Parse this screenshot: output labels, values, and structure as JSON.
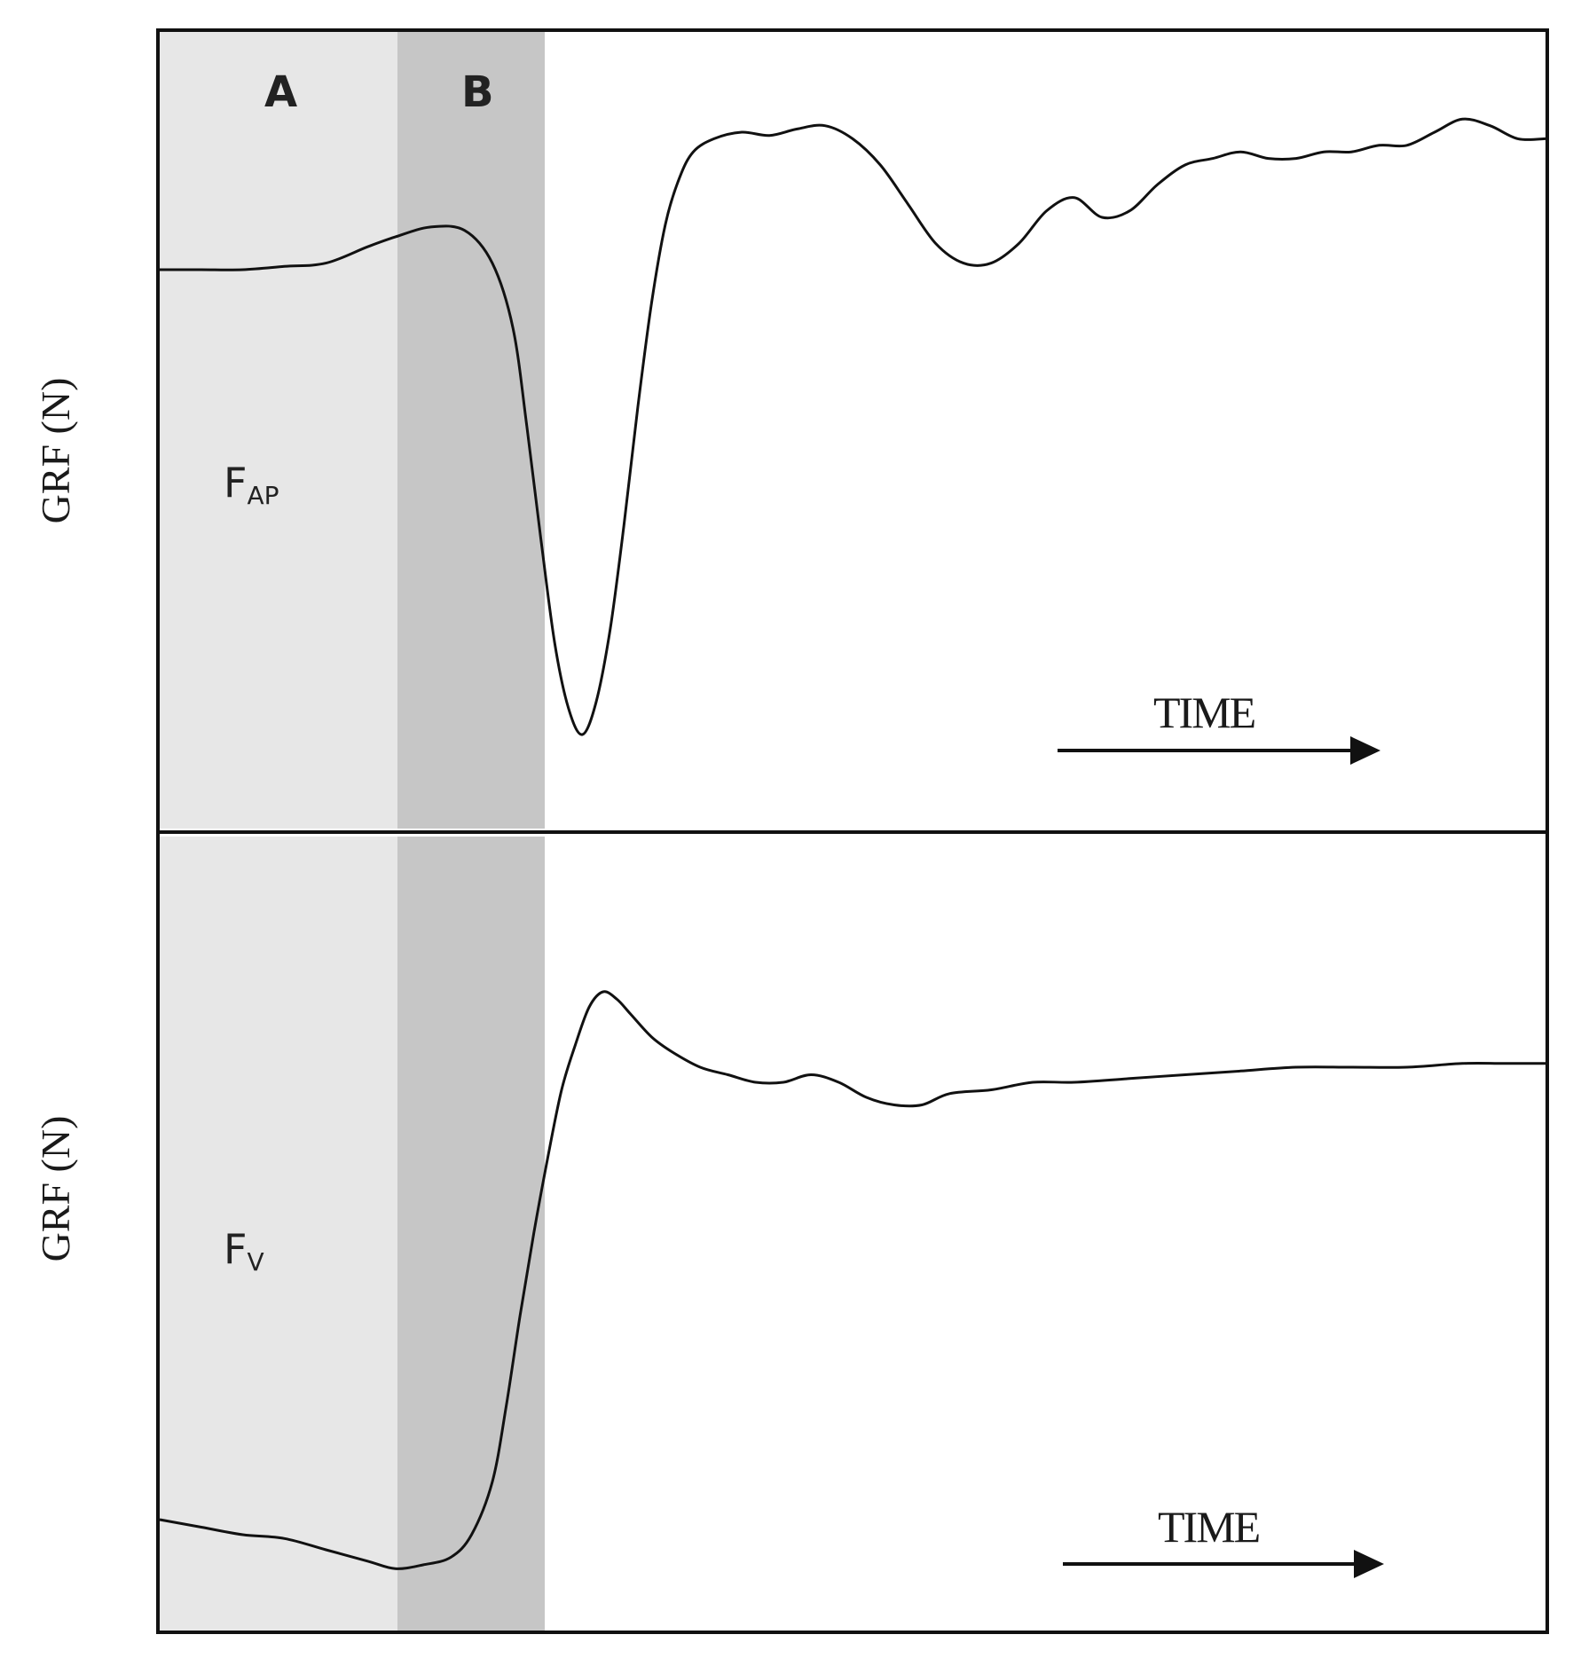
{
  "chart_data": [
    {
      "type": "line",
      "ylabel": "GRF (N)",
      "series_label": "F",
      "series_label_sub": "AP",
      "time_label": "TIME",
      "phases": [
        "A",
        "B"
      ],
      "x": [
        0,
        0.03,
        0.06,
        0.09,
        0.12,
        0.15,
        0.17,
        0.195,
        0.22,
        0.24,
        0.255,
        0.265,
        0.275,
        0.285,
        0.295,
        0.305,
        0.315,
        0.325,
        0.335,
        0.345,
        0.355,
        0.365,
        0.375,
        0.385,
        0.4,
        0.42,
        0.44,
        0.46,
        0.48,
        0.5,
        0.52,
        0.54,
        0.56,
        0.58,
        0.6,
        0.62,
        0.64,
        0.66,
        0.68,
        0.7,
        0.72,
        0.74,
        0.76,
        0.78,
        0.8,
        0.82,
        0.84,
        0.86,
        0.88,
        0.9,
        0.92,
        0.94,
        0.96,
        0.98,
        1.0
      ],
      "y": [
        0.71,
        0.71,
        0.71,
        0.715,
        0.72,
        0.745,
        0.76,
        0.775,
        0.77,
        0.72,
        0.62,
        0.47,
        0.3,
        0.14,
        0.04,
        0.0,
        0.05,
        0.16,
        0.32,
        0.5,
        0.66,
        0.78,
        0.85,
        0.89,
        0.91,
        0.92,
        0.915,
        0.925,
        0.93,
        0.91,
        0.87,
        0.81,
        0.75,
        0.72,
        0.72,
        0.75,
        0.8,
        0.82,
        0.79,
        0.8,
        0.84,
        0.87,
        0.88,
        0.89,
        0.88,
        0.88,
        0.89,
        0.89,
        0.9,
        0.9,
        0.92,
        0.94,
        0.93,
        0.91,
        0.91
      ]
    },
    {
      "type": "line",
      "ylabel": "GRF (N)",
      "series_label": "F",
      "series_label_sub": "V",
      "time_label": "TIME",
      "phases": [
        "A",
        "B"
      ],
      "x": [
        0,
        0.03,
        0.06,
        0.09,
        0.12,
        0.15,
        0.17,
        0.19,
        0.21,
        0.225,
        0.24,
        0.25,
        0.26,
        0.27,
        0.28,
        0.29,
        0.3,
        0.31,
        0.32,
        0.33,
        0.34,
        0.355,
        0.37,
        0.39,
        0.41,
        0.43,
        0.45,
        0.47,
        0.49,
        0.51,
        0.53,
        0.55,
        0.57,
        0.6,
        0.63,
        0.66,
        0.7,
        0.74,
        0.78,
        0.82,
        0.86,
        0.9,
        0.94,
        0.97,
        1.0
      ],
      "y": [
        0.22,
        0.21,
        0.2,
        0.195,
        0.18,
        0.165,
        0.155,
        0.16,
        0.17,
        0.2,
        0.27,
        0.37,
        0.49,
        0.6,
        0.7,
        0.79,
        0.85,
        0.9,
        0.92,
        0.91,
        0.89,
        0.86,
        0.84,
        0.82,
        0.81,
        0.8,
        0.8,
        0.81,
        0.8,
        0.78,
        0.77,
        0.77,
        0.785,
        0.79,
        0.8,
        0.8,
        0.805,
        0.81,
        0.815,
        0.82,
        0.82,
        0.82,
        0.825,
        0.825,
        0.825
      ]
    }
  ]
}
